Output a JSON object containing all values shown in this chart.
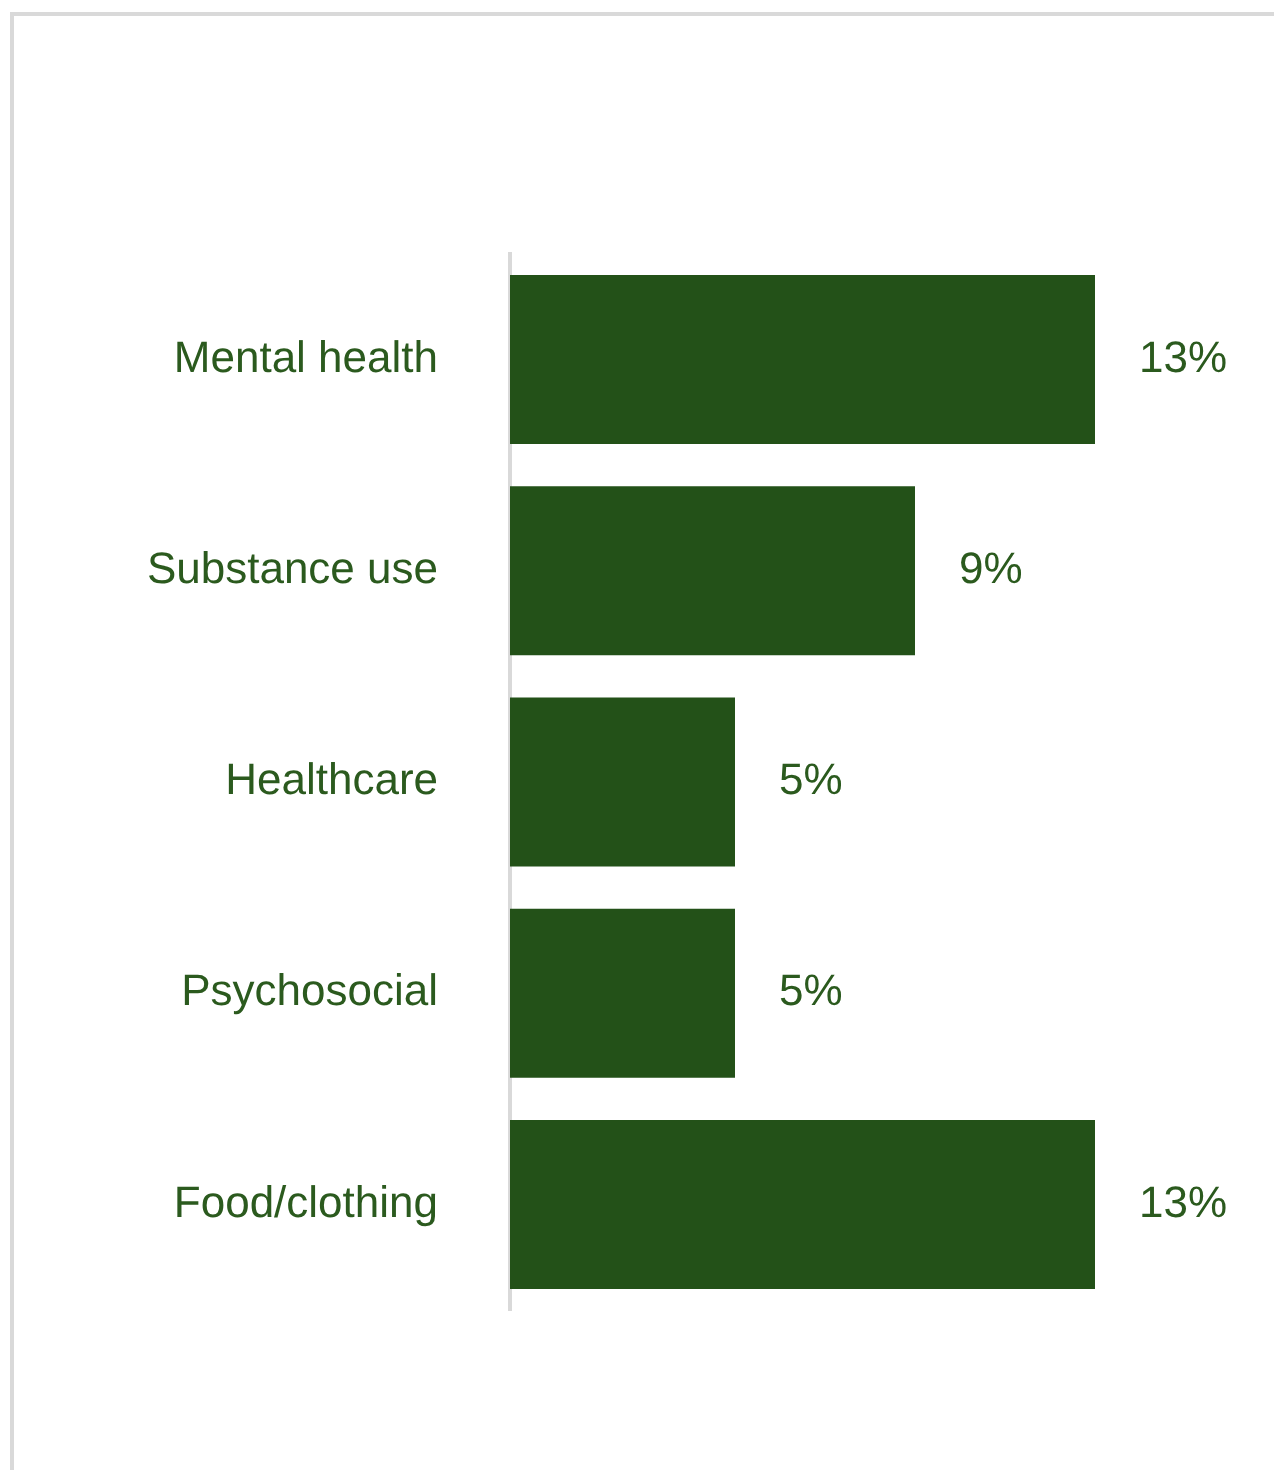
{
  "chart_data": {
    "type": "bar",
    "orientation": "horizontal",
    "categories": [
      "Mental health",
      "Substance use",
      "Healthcare",
      "Psychosocial",
      "Food/clothing"
    ],
    "values": [
      13,
      9,
      5,
      5,
      13
    ],
    "color": "#235118",
    "value_labels": [
      "13%",
      "9%",
      "5%",
      "5%",
      "13%"
    ]
  }
}
